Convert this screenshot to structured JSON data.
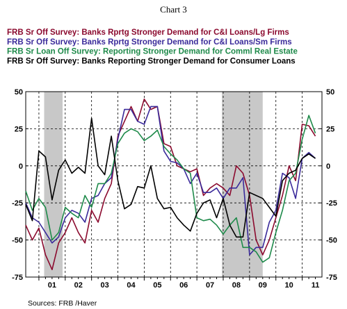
{
  "chart_data": {
    "type": "line",
    "title": "Chart 3",
    "source": "Sources:  FRB /Haver",
    "legend_position": "top",
    "grid": true,
    "ylim": [
      -75,
      50
    ],
    "yticks": [
      50,
      25,
      0,
      -25,
      -50,
      -75
    ],
    "ytick_labels": [
      "50",
      "25",
      "0",
      "-25",
      "-50",
      "-75"
    ],
    "xlim": [
      2000.5,
      2011.75
    ],
    "xtick_labels": [
      "01",
      "02",
      "03",
      "04",
      "05",
      "06",
      "07",
      "08",
      "09",
      "10",
      "11"
    ],
    "recessions": [
      [
        2001.2,
        2001.9
      ],
      [
        2007.95,
        2009.5
      ]
    ],
    "series": [
      {
        "name": "FRB Sr Off Survey: Banks Rprtg Stronger Demand for C&I Loans/Lg Firms",
        "color": "#8b0a2e",
        "x": [
          2000.5,
          2000.75,
          2001.0,
          2001.25,
          2001.5,
          2001.75,
          2002.0,
          2002.25,
          2002.5,
          2002.75,
          2003.0,
          2003.25,
          2003.5,
          2003.75,
          2004.0,
          2004.25,
          2004.5,
          2004.75,
          2005.0,
          2005.25,
          2005.5,
          2005.75,
          2006.0,
          2006.25,
          2006.5,
          2006.75,
          2007.0,
          2007.25,
          2007.5,
          2007.75,
          2008.0,
          2008.25,
          2008.5,
          2008.75,
          2009.0,
          2009.25,
          2009.5,
          2009.75,
          2010.0,
          2010.25,
          2010.5,
          2010.75,
          2011.0,
          2011.25,
          2011.5
        ],
        "values": [
          -40,
          -50,
          -42,
          -60,
          -70,
          -52,
          -45,
          -35,
          -45,
          -52,
          -30,
          -38,
          -22,
          -12,
          20,
          30,
          40,
          30,
          45,
          38,
          40,
          15,
          13,
          0,
          -2,
          -4,
          -2,
          -20,
          -15,
          -12,
          -15,
          -20,
          0,
          -5,
          -20,
          -50,
          -60,
          -50,
          -35,
          -20,
          0,
          -10,
          28,
          27,
          20
        ]
      },
      {
        "name": "FRB Sr Off Survey: Banks Rprtg Stronger Demand for C&I Loans/Sm Firms",
        "color": "#3a2a9a",
        "x": [
          2000.5,
          2000.75,
          2001.0,
          2001.25,
          2001.5,
          2001.75,
          2002.0,
          2002.25,
          2002.5,
          2002.75,
          2003.0,
          2003.25,
          2003.5,
          2003.75,
          2004.0,
          2004.25,
          2004.5,
          2004.75,
          2005.0,
          2005.25,
          2005.5,
          2005.75,
          2006.0,
          2006.25,
          2006.5,
          2006.75,
          2007.0,
          2007.25,
          2007.5,
          2007.75,
          2008.0,
          2008.25,
          2008.5,
          2008.75,
          2009.0,
          2009.25,
          2009.5,
          2009.75,
          2010.0,
          2010.25,
          2010.5,
          2010.75,
          2011.0,
          2011.25,
          2011.5
        ],
        "values": [
          -25,
          -35,
          -38,
          -45,
          -52,
          -48,
          -35,
          -30,
          -32,
          -38,
          -22,
          -20,
          -12,
          -8,
          18,
          38,
          38,
          30,
          28,
          40,
          40,
          10,
          3,
          2,
          -2,
          -12,
          -5,
          -18,
          -18,
          -15,
          -22,
          -15,
          -15,
          -8,
          -60,
          -55,
          -55,
          -38,
          -30,
          -5,
          -8,
          -22,
          5,
          9,
          5
        ]
      },
      {
        "name": "FRB Sr Loan Off Survey: Reporting Stronger Demand for Comml Real Estate",
        "color": "#1e8a4a",
        "x": [
          2000.5,
          2000.75,
          2001.0,
          2001.25,
          2001.5,
          2001.75,
          2002.0,
          2002.25,
          2002.5,
          2002.75,
          2003.0,
          2003.25,
          2003.5,
          2003.75,
          2004.0,
          2004.25,
          2004.5,
          2004.75,
          2005.0,
          2005.25,
          2005.5,
          2005.75,
          2006.0,
          2006.25,
          2006.5,
          2006.75,
          2007.0,
          2007.25,
          2007.5,
          2007.75,
          2008.0,
          2008.25,
          2008.5,
          2008.75,
          2009.0,
          2009.25,
          2009.5,
          2009.75,
          2010.0,
          2010.25,
          2010.5,
          2010.75,
          2011.0,
          2011.25,
          2011.5
        ],
        "values": [
          -17,
          -30,
          -22,
          -28,
          -50,
          -45,
          -28,
          -32,
          -35,
          -20,
          -28,
          -12,
          -12,
          -5,
          15,
          22,
          25,
          23,
          17,
          20,
          24,
          13,
          8,
          4,
          -2,
          -5,
          -35,
          -37,
          -36,
          -40,
          -46,
          -40,
          -35,
          -55,
          -55,
          -58,
          -65,
          -62,
          -45,
          -30,
          -10,
          -5,
          18,
          34,
          22
        ]
      },
      {
        "name": "FRB Sr Off Survey: Banks Reporting Stronger Demand for Consumer Loans",
        "color": "#000000",
        "x": [
          2000.5,
          2000.75,
          2001.0,
          2001.25,
          2001.5,
          2001.75,
          2002.0,
          2002.25,
          2002.5,
          2002.75,
          2003.0,
          2003.25,
          2003.5,
          2003.75,
          2004.0,
          2004.25,
          2004.5,
          2004.75,
          2005.0,
          2005.25,
          2005.5,
          2005.75,
          2006.0,
          2006.25,
          2006.5,
          2006.75,
          2007.0,
          2007.25,
          2007.5,
          2007.75,
          2008.0,
          2008.25,
          2008.5,
          2008.75,
          2009.0,
          2009.25,
          2009.5,
          2009.75,
          2010.0,
          2010.25,
          2010.5,
          2010.75,
          2011.0,
          2011.25,
          2011.5
        ],
        "values": [
          -26,
          -37,
          10,
          6,
          -23,
          -3,
          4,
          -5,
          -1,
          -5,
          32,
          0,
          -6,
          20,
          -10,
          -29,
          -26,
          -14,
          -15,
          0,
          -22,
          -29,
          -28,
          -35,
          -40,
          -44,
          -32,
          -25,
          -23,
          -35,
          -22,
          -40,
          -48,
          -48,
          -18,
          -20,
          -22,
          -28,
          -34,
          -10,
          -5,
          -3,
          5,
          8,
          5
        ]
      }
    ]
  }
}
